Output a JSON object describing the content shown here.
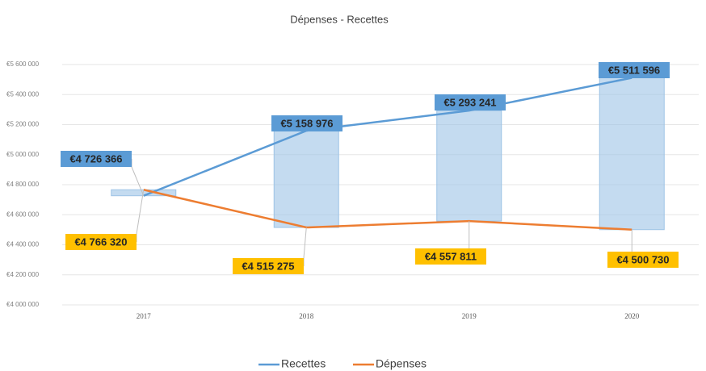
{
  "chart_data": {
    "type": "line",
    "title": "Dépenses - Recettes",
    "categories": [
      "2017",
      "2018",
      "2019",
      "2020"
    ],
    "series": [
      {
        "name": "Recettes",
        "color": "#5b9bd5",
        "values": [
          4726366,
          5158976,
          5293241,
          5511596
        ],
        "value_labels": [
          "€4 726 366",
          "€5 158 976",
          "€5 293 241",
          "€5 511 596"
        ]
      },
      {
        "name": "Dépenses",
        "color": "#ed7d31",
        "values": [
          4766320,
          4515275,
          4557811,
          4500730
        ],
        "value_labels": [
          "€4 766 320",
          "€4 515 275",
          "€4 557 811",
          "€4 500 730"
        ]
      }
    ],
    "ylim": [
      4000000,
      5600000
    ],
    "yticks": [
      {
        "value": 4000000,
        "label": "€4 000 000"
      },
      {
        "value": 4200000,
        "label": "€4 200 000"
      },
      {
        "value": 4400000,
        "label": "€4 400 000"
      },
      {
        "value": 4600000,
        "label": "€4 600 000"
      },
      {
        "value": 4800000,
        "label": "€4 800 000"
      },
      {
        "value": 5000000,
        "label": "€5 000 000"
      },
      {
        "value": 5200000,
        "label": "€5 200 000"
      },
      {
        "value": 5400000,
        "label": "€5 400 000"
      },
      {
        "value": 5600000,
        "label": "€5 600 000"
      }
    ],
    "grid": true,
    "legend": "bottom"
  }
}
